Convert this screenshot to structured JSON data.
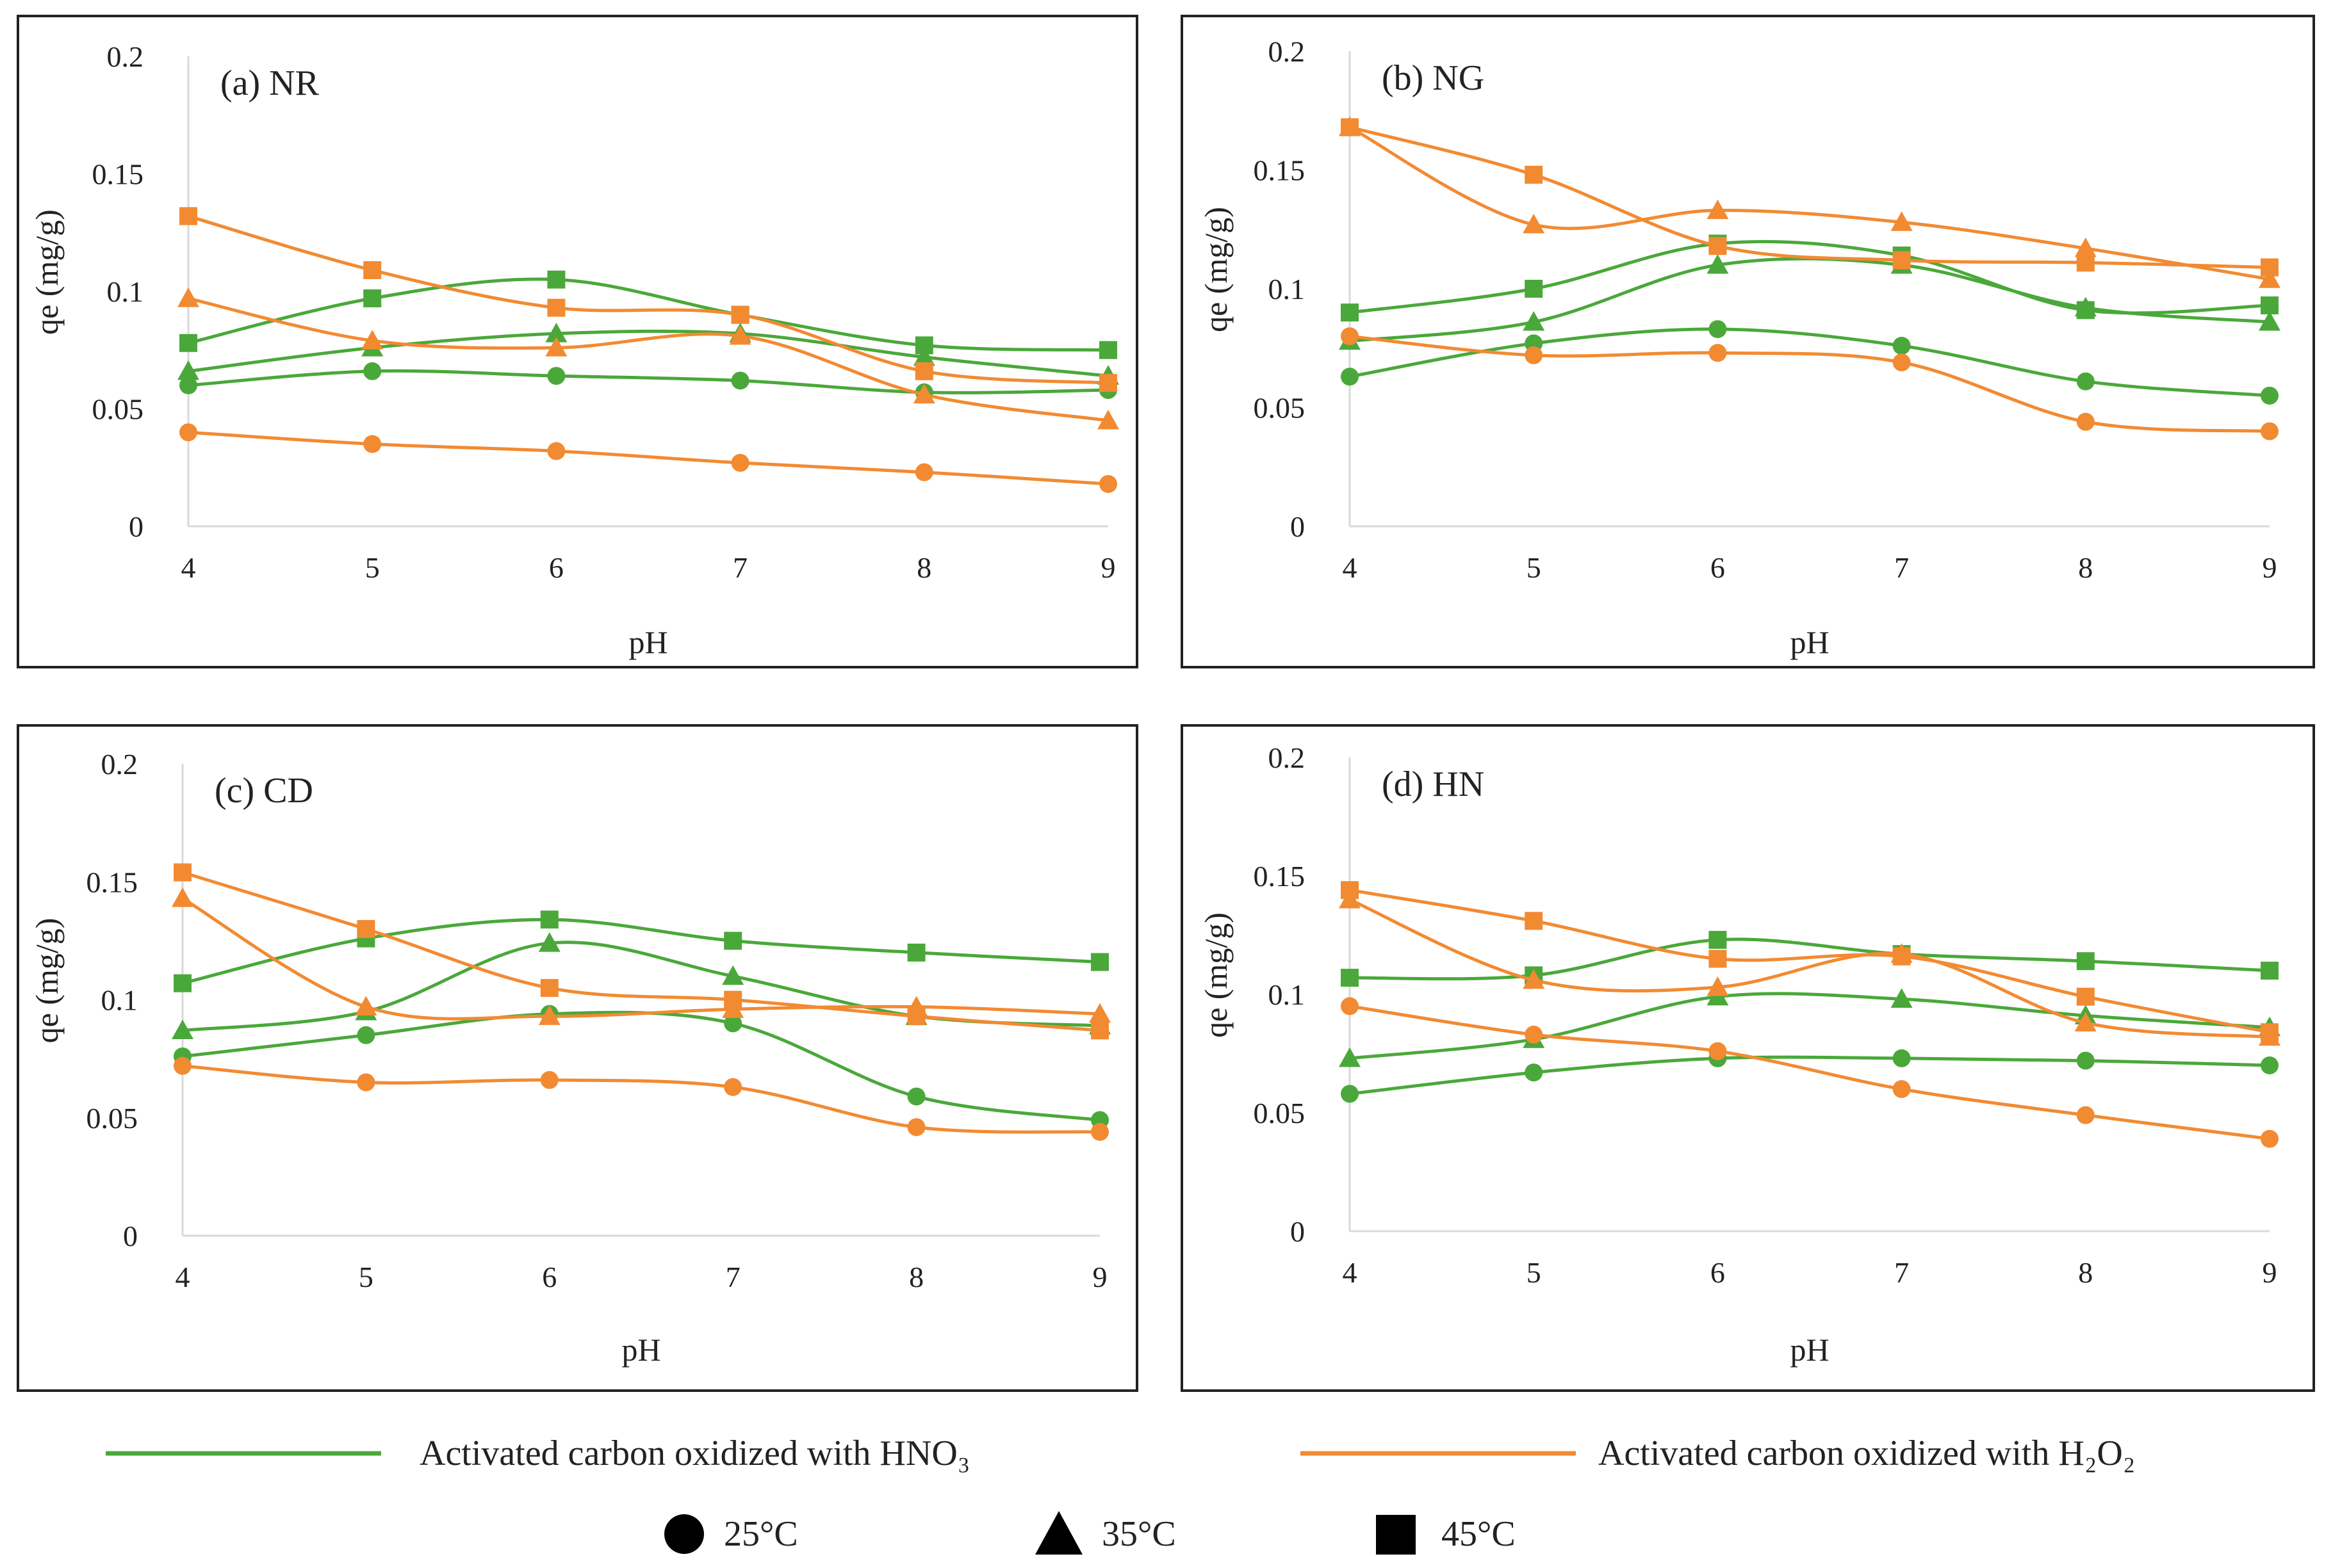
{
  "figure": {
    "legend": {
      "hno3_label": "Activated carbon oxidized with HNO₃",
      "h2o2_label": "Activated carbon oxidized with H₂O₂",
      "temp_25": "25°C",
      "temp_35": "35°C",
      "temp_45": "45°C"
    },
    "colors": {
      "hno3": "#4aa83a",
      "h2o2": "#f28a32"
    }
  },
  "chart_data": [
    {
      "type": "line",
      "panel": "(a)",
      "title": "NR",
      "xlabel": "pH",
      "ylabel": "qe (mg/g)",
      "x": [
        4,
        5,
        6,
        7,
        8,
        9
      ],
      "xticks": [
        "4",
        "5",
        "6",
        "7",
        "8",
        "9"
      ],
      "yticks": [
        "0",
        "0.05",
        "0.1",
        "0.15",
        "0.2"
      ],
      "ylim": [
        0,
        0.2
      ],
      "series": [
        {
          "name": "HNO3 25°C",
          "oxidant": "hno3",
          "temp": "25",
          "values": [
            0.06,
            0.066,
            0.064,
            0.062,
            0.057,
            0.058
          ]
        },
        {
          "name": "HNO3 35°C",
          "oxidant": "hno3",
          "temp": "35",
          "values": [
            0.066,
            0.076,
            0.082,
            0.082,
            0.072,
            0.064
          ]
        },
        {
          "name": "HNO3 45°C",
          "oxidant": "hno3",
          "temp": "45",
          "values": [
            0.078,
            0.097,
            0.105,
            0.09,
            0.077,
            0.075
          ]
        },
        {
          "name": "H2O2 25°C",
          "oxidant": "h2o2",
          "temp": "25",
          "values": [
            0.04,
            0.035,
            0.032,
            0.027,
            0.023,
            0.018
          ]
        },
        {
          "name": "H2O2 35°C",
          "oxidant": "h2o2",
          "temp": "35",
          "values": [
            0.097,
            0.079,
            0.076,
            0.081,
            0.056,
            0.045
          ]
        },
        {
          "name": "H2O2 45°C",
          "oxidant": "h2o2",
          "temp": "45",
          "values": [
            0.132,
            0.109,
            0.093,
            0.09,
            0.066,
            0.061
          ]
        }
      ]
    },
    {
      "type": "line",
      "panel": "(b)",
      "title": "NG",
      "xlabel": "pH",
      "ylabel": "qe (mg/g)",
      "x": [
        4,
        5,
        6,
        7,
        8,
        9
      ],
      "xticks": [
        "4",
        "5",
        "6",
        "7",
        "8",
        "9"
      ],
      "yticks": [
        "0",
        "0.05",
        "0.1",
        "0.15",
        "0.2"
      ],
      "ylim": [
        0,
        0.2
      ],
      "series": [
        {
          "name": "HNO3 25°C",
          "oxidant": "hno3",
          "temp": "25",
          "values": [
            0.063,
            0.077,
            0.083,
            0.076,
            0.061,
            0.055
          ]
        },
        {
          "name": "HNO3 35°C",
          "oxidant": "hno3",
          "temp": "35",
          "values": [
            0.078,
            0.086,
            0.11,
            0.11,
            0.092,
            0.086
          ]
        },
        {
          "name": "HNO3 45°C",
          "oxidant": "hno3",
          "temp": "45",
          "values": [
            0.09,
            0.1,
            0.119,
            0.114,
            0.091,
            0.093
          ]
        },
        {
          "name": "H2O2 25°C",
          "oxidant": "h2o2",
          "temp": "25",
          "values": [
            0.08,
            0.072,
            0.073,
            0.069,
            0.044,
            0.04
          ]
        },
        {
          "name": "H2O2 35°C",
          "oxidant": "h2o2",
          "temp": "35",
          "values": [
            0.168,
            0.127,
            0.133,
            0.128,
            0.117,
            0.104
          ]
        },
        {
          "name": "H2O2 45°C",
          "oxidant": "h2o2",
          "temp": "45",
          "values": [
            0.168,
            0.148,
            0.118,
            0.112,
            0.111,
            0.109
          ]
        }
      ]
    },
    {
      "type": "line",
      "panel": "(c)",
      "title": "CD",
      "xlabel": "pH",
      "ylabel": "qe (mg/g)",
      "x": [
        4,
        5,
        6,
        7,
        8,
        9
      ],
      "xticks": [
        "4",
        "5",
        "6",
        "7",
        "8",
        "9"
      ],
      "yticks": [
        "0",
        "0.05",
        "0.1",
        "0.15",
        "0.2"
      ],
      "ylim": [
        0,
        0.2
      ],
      "series": [
        {
          "name": "HNO3 25°C",
          "oxidant": "hno3",
          "temp": "25",
          "values": [
            0.076,
            0.085,
            0.094,
            0.09,
            0.059,
            0.049
          ]
        },
        {
          "name": "HNO3 35°C",
          "oxidant": "hno3",
          "temp": "35",
          "values": [
            0.087,
            0.095,
            0.124,
            0.11,
            0.093,
            0.089
          ]
        },
        {
          "name": "HNO3 45°C",
          "oxidant": "hno3",
          "temp": "45",
          "values": [
            0.107,
            0.126,
            0.134,
            0.125,
            0.12,
            0.116
          ]
        },
        {
          "name": "H2O2 25°C",
          "oxidant": "h2o2",
          "temp": "25",
          "values": [
            0.072,
            0.065,
            0.066,
            0.063,
            0.046,
            0.044
          ]
        },
        {
          "name": "H2O2 35°C",
          "oxidant": "h2o2",
          "temp": "35",
          "values": [
            0.143,
            0.097,
            0.093,
            0.096,
            0.097,
            0.094
          ]
        },
        {
          "name": "H2O2 45°C",
          "oxidant": "h2o2",
          "temp": "45",
          "values": [
            0.154,
            0.13,
            0.105,
            0.1,
            0.093,
            0.087
          ]
        }
      ]
    },
    {
      "type": "line",
      "panel": "(d)",
      "title": "HN",
      "xlabel": "pH",
      "ylabel": "qe (mg/g)",
      "x": [
        4,
        5,
        6,
        7,
        8,
        9
      ],
      "xticks": [
        "4",
        "5",
        "6",
        "7",
        "8",
        "9"
      ],
      "yticks": [
        "0",
        "0.05",
        "0.1",
        "0.15",
        "0.2"
      ],
      "ylim": [
        0,
        0.2
      ],
      "series": [
        {
          "name": "HNO3 25°C",
          "oxidant": "hno3",
          "temp": "25",
          "values": [
            0.058,
            0.067,
            0.073,
            0.073,
            0.072,
            0.07
          ]
        },
        {
          "name": "HNO3 35°C",
          "oxidant": "hno3",
          "temp": "35",
          "values": [
            0.073,
            0.081,
            0.099,
            0.098,
            0.091,
            0.086
          ]
        },
        {
          "name": "HNO3 45°C",
          "oxidant": "hno3",
          "temp": "45",
          "values": [
            0.107,
            0.108,
            0.123,
            0.117,
            0.114,
            0.11
          ]
        },
        {
          "name": "H2O2 25°C",
          "oxidant": "h2o2",
          "temp": "25",
          "values": [
            0.095,
            0.083,
            0.076,
            0.06,
            0.049,
            0.039
          ]
        },
        {
          "name": "H2O2 35°C",
          "oxidant": "h2o2",
          "temp": "35",
          "values": [
            0.14,
            0.106,
            0.103,
            0.117,
            0.088,
            0.082
          ]
        },
        {
          "name": "H2O2 45°C",
          "oxidant": "h2o2",
          "temp": "45",
          "values": [
            0.144,
            0.131,
            0.115,
            0.116,
            0.099,
            0.084
          ]
        }
      ]
    }
  ]
}
